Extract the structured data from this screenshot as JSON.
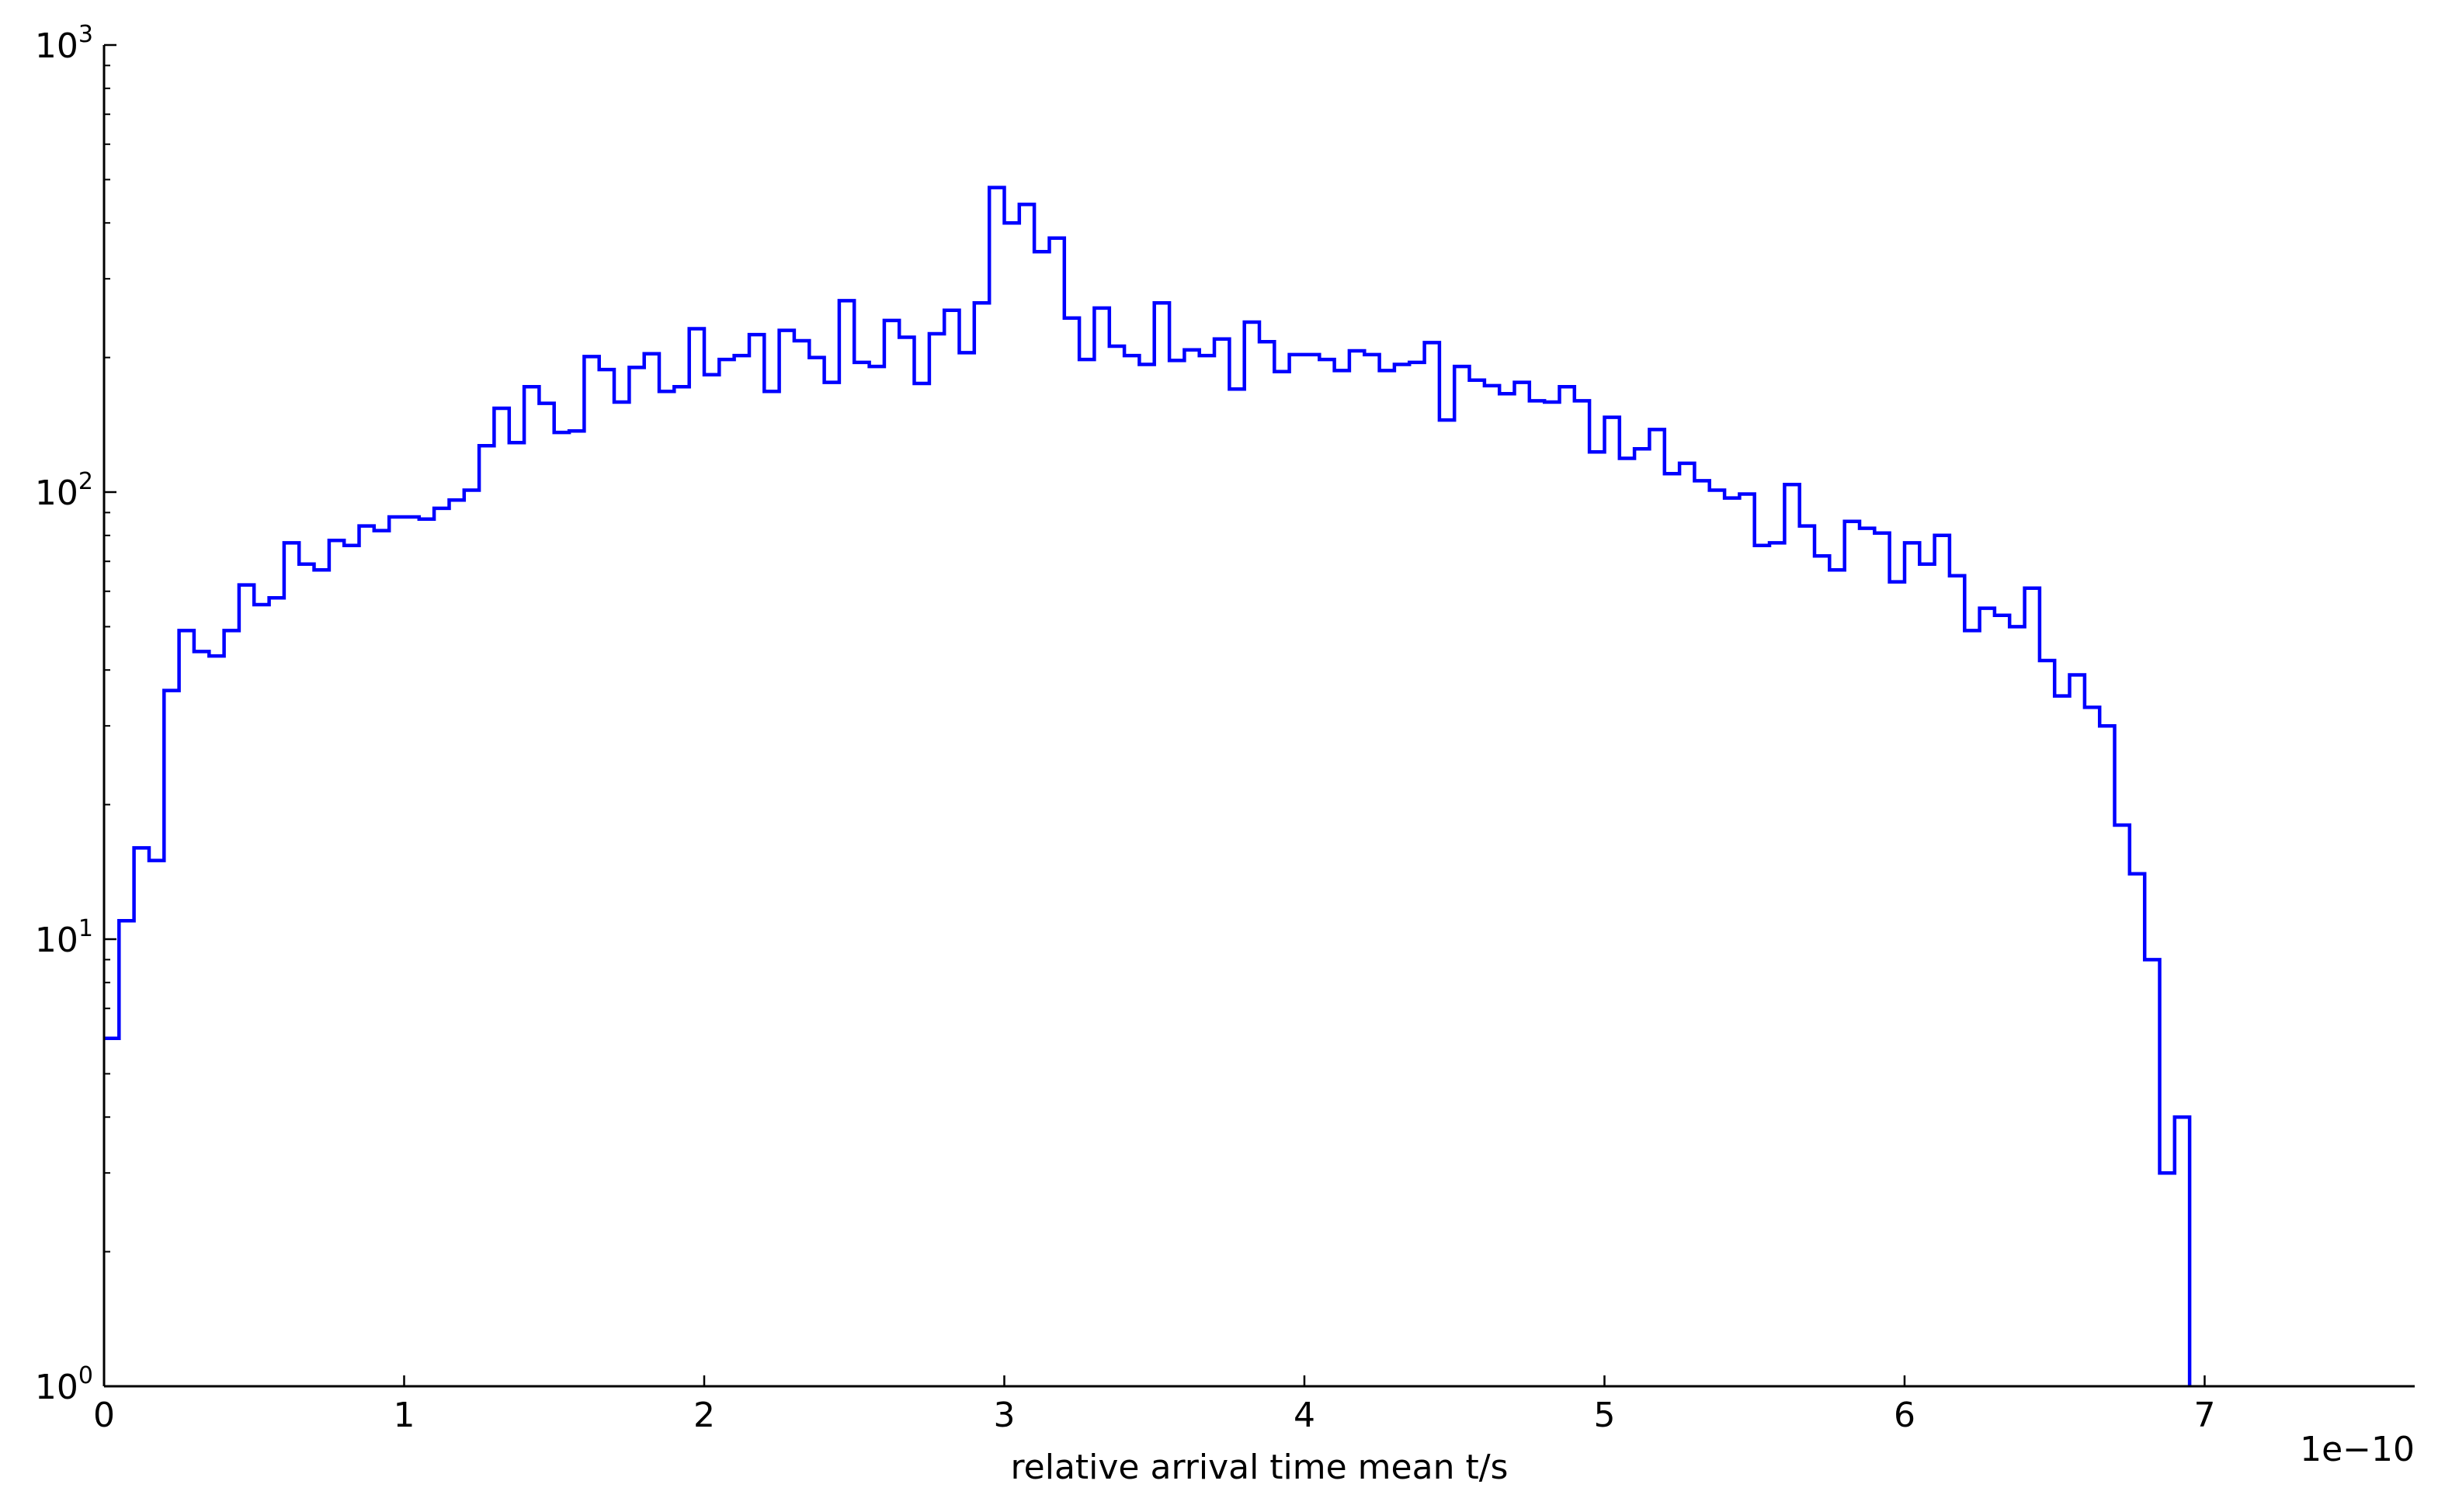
{
  "chart_data": {
    "type": "histogram",
    "xlabel": "relative arrival time mean t/s",
    "x_offset_label": "1e−10",
    "x_unit_multiplier": 1e-10,
    "ylabel": "",
    "yscale": "log",
    "xlim": [
      0,
      7.7
    ],
    "ylim": [
      1,
      1000
    ],
    "grid": false,
    "line_color": "#0000ff",
    "histtype": "step",
    "x_ticks": [
      "0",
      "1",
      "2",
      "3",
      "4",
      "5",
      "6",
      "7"
    ],
    "x_tick_values": [
      0,
      1,
      2,
      3,
      4,
      5,
      6,
      7
    ],
    "y_ticks": [
      {
        "value": 1,
        "base": "10",
        "exp": "0"
      },
      {
        "value": 10,
        "base": "10",
        "exp": "1"
      },
      {
        "value": 100,
        "base": "10",
        "exp": "2"
      },
      {
        "value": 1000,
        "base": "10",
        "exp": "3"
      }
    ],
    "bin_start": 0,
    "bin_width": 0.05,
    "counts": [
      6,
      11,
      16,
      15,
      36,
      49,
      44,
      43,
      49,
      62,
      56,
      58,
      77,
      69,
      67,
      78,
      76,
      84,
      82,
      88,
      88,
      87,
      92,
      96,
      101,
      127,
      154,
      129,
      172,
      158,
      136,
      137,
      201,
      188,
      159,
      190,
      204,
      168,
      172,
      232,
      183,
      198,
      202,
      225,
      168,
      230,
      218,
      200,
      176,
      268,
      195,
      191,
      242,
      222,
      175,
      226,
      255,
      205,
      265,
      480,
      400,
      440,
      345,
      370,
      245,
      198,
      258,
      212,
      202,
      193,
      265,
      197,
      208,
      202,
      220,
      170,
      240,
      217,
      186,
      203,
      203,
      198,
      187,
      207,
      203,
      187,
      193,
      195,
      216,
      145,
      191,
      178,
      173,
      166,
      176,
      160,
      159,
      172,
      160,
      123,
      147,
      119,
      125,
      138,
      110,
      116,
      106,
      101,
      97,
      99,
      76,
      77,
      104,
      84,
      72,
      67,
      86,
      83,
      81,
      63,
      77,
      69,
      80,
      65,
      49,
      55,
      53,
      50,
      61,
      42,
      35,
      39,
      33,
      30,
      18,
      14,
      9,
      3,
      4
    ]
  }
}
